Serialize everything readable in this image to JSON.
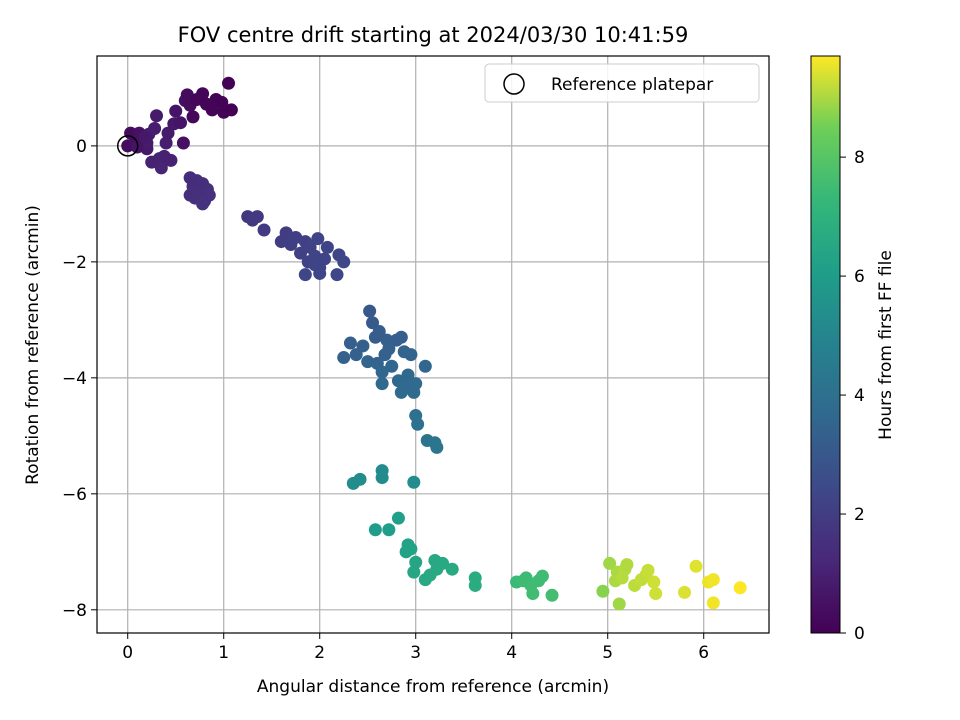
{
  "chart_data": {
    "type": "scatter",
    "title": "FOV centre drift starting at 2024/03/30 10:41:59",
    "xlabel": "Angular distance from reference (arcmin)",
    "ylabel": "Rotation from reference (arcmin)",
    "xlim": [
      -0.32,
      6.68
    ],
    "ylim": [
      -8.4,
      1.55
    ],
    "xticks": [
      0,
      1,
      2,
      3,
      4,
      5,
      6
    ],
    "yticks": [
      0,
      -2,
      -4,
      -6,
      -8
    ],
    "xtick_labels": [
      "0",
      "1",
      "2",
      "3",
      "4",
      "5",
      "6"
    ],
    "ytick_labels": [
      "0",
      "−2",
      "−4",
      "−6",
      "−8"
    ],
    "grid": true,
    "legend": {
      "label": "Reference platepar",
      "placement": "top-right"
    },
    "reference_point": {
      "x": 0,
      "y": 0
    },
    "colorbar": {
      "label": "Hours from first FF file",
      "colormap": "viridis",
      "range": [
        0,
        9.7
      ],
      "ticks": [
        0,
        2,
        4,
        6,
        8
      ],
      "tick_labels": [
        "0",
        "2",
        "4",
        "6",
        "8"
      ]
    },
    "points": [
      {
        "x": 0.0,
        "y": 0.0,
        "h": 0.3
      },
      {
        "x": 0.03,
        "y": 0.22,
        "h": 0.3
      },
      {
        "x": 0.08,
        "y": 0.08,
        "h": 0.4
      },
      {
        "x": 0.12,
        "y": 0.22,
        "h": 0.5
      },
      {
        "x": 0.15,
        "y": 0.05,
        "h": 0.6
      },
      {
        "x": 0.2,
        "y": -0.05,
        "h": 0.7
      },
      {
        "x": 0.22,
        "y": 0.2,
        "h": 0.8
      },
      {
        "x": 0.25,
        "y": -0.28,
        "h": 1.0
      },
      {
        "x": 0.28,
        "y": 0.3,
        "h": 0.9
      },
      {
        "x": 0.3,
        "y": 0.52,
        "h": 0.8
      },
      {
        "x": 0.33,
        "y": -0.22,
        "h": 1.0
      },
      {
        "x": 0.35,
        "y": -0.38,
        "h": 1.1
      },
      {
        "x": 0.38,
        "y": -0.18,
        "h": 1.0
      },
      {
        "x": 0.4,
        "y": 0.05,
        "h": 0.9
      },
      {
        "x": 0.42,
        "y": 0.22,
        "h": 0.8
      },
      {
        "x": 0.45,
        "y": -0.25,
        "h": 1.0
      },
      {
        "x": 0.48,
        "y": 0.38,
        "h": 0.7
      },
      {
        "x": 0.5,
        "y": 0.6,
        "h": 0.6
      },
      {
        "x": 0.55,
        "y": 0.4,
        "h": 0.6
      },
      {
        "x": 0.58,
        "y": 0.05,
        "h": 0.5
      },
      {
        "x": 0.6,
        "y": 0.78,
        "h": 0.4
      },
      {
        "x": 0.62,
        "y": 0.88,
        "h": 0.3
      },
      {
        "x": 0.65,
        "y": 0.7,
        "h": 0.3
      },
      {
        "x": 0.68,
        "y": 0.5,
        "h": 0.2
      },
      {
        "x": 0.72,
        "y": 0.8,
        "h": 0.2
      },
      {
        "x": 0.78,
        "y": 0.9,
        "h": 0.15
      },
      {
        "x": 0.82,
        "y": 0.72,
        "h": 0.1
      },
      {
        "x": 0.88,
        "y": 0.62,
        "h": 0.1
      },
      {
        "x": 0.92,
        "y": 0.8,
        "h": 0.08
      },
      {
        "x": 0.98,
        "y": 0.75,
        "h": 0.05
      },
      {
        "x": 1.0,
        "y": 0.58,
        "h": 0.05
      },
      {
        "x": 1.05,
        "y": 1.08,
        "h": 0.02
      },
      {
        "x": 1.08,
        "y": 0.62,
        "h": 0.03
      },
      {
        "x": 0.2,
        "y": 0.05,
        "h": 0.8
      },
      {
        "x": 0.1,
        "y": -0.02,
        "h": 0.6
      },
      {
        "x": 0.18,
        "y": 0.15,
        "h": 0.7
      },
      {
        "x": 0.65,
        "y": -0.55,
        "h": 1.4
      },
      {
        "x": 0.68,
        "y": -0.7,
        "h": 1.45
      },
      {
        "x": 0.7,
        "y": -0.9,
        "h": 1.5
      },
      {
        "x": 0.72,
        "y": -0.6,
        "h": 1.4
      },
      {
        "x": 0.75,
        "y": -0.8,
        "h": 1.5
      },
      {
        "x": 0.78,
        "y": -0.65,
        "h": 1.45
      },
      {
        "x": 0.8,
        "y": -0.95,
        "h": 1.55
      },
      {
        "x": 0.83,
        "y": -0.75,
        "h": 1.5
      },
      {
        "x": 0.85,
        "y": -0.85,
        "h": 1.55
      },
      {
        "x": 0.65,
        "y": -0.85,
        "h": 1.5
      },
      {
        "x": 0.78,
        "y": -1.0,
        "h": 1.6
      },
      {
        "x": 1.25,
        "y": -1.22,
        "h": 1.8
      },
      {
        "x": 1.3,
        "y": -1.28,
        "h": 1.85
      },
      {
        "x": 1.35,
        "y": -1.22,
        "h": 1.85
      },
      {
        "x": 1.42,
        "y": -1.45,
        "h": 1.9
      },
      {
        "x": 1.6,
        "y": -1.65,
        "h": 2.0
      },
      {
        "x": 1.65,
        "y": -1.5,
        "h": 2.0
      },
      {
        "x": 1.7,
        "y": -1.7,
        "h": 2.05
      },
      {
        "x": 1.75,
        "y": -1.58,
        "h": 2.05
      },
      {
        "x": 1.8,
        "y": -1.85,
        "h": 2.1
      },
      {
        "x": 1.85,
        "y": -1.65,
        "h": 2.1
      },
      {
        "x": 1.88,
        "y": -2.0,
        "h": 2.15
      },
      {
        "x": 1.9,
        "y": -1.75,
        "h": 2.15
      },
      {
        "x": 1.95,
        "y": -1.9,
        "h": 2.2
      },
      {
        "x": 1.98,
        "y": -1.6,
        "h": 2.2
      },
      {
        "x": 2.0,
        "y": -2.1,
        "h": 2.25
      },
      {
        "x": 2.05,
        "y": -1.95,
        "h": 2.25
      },
      {
        "x": 2.08,
        "y": -1.75,
        "h": 2.25
      },
      {
        "x": 1.85,
        "y": -2.22,
        "h": 2.3
      },
      {
        "x": 2.0,
        "y": -2.2,
        "h": 2.3
      },
      {
        "x": 2.18,
        "y": -2.22,
        "h": 2.35
      },
      {
        "x": 2.2,
        "y": -1.88,
        "h": 2.3
      },
      {
        "x": 2.25,
        "y": -2.0,
        "h": 2.35
      },
      {
        "x": 1.95,
        "y": -2.05,
        "h": 2.25
      },
      {
        "x": 2.25,
        "y": -3.65,
        "h": 3.4
      },
      {
        "x": 2.32,
        "y": -3.4,
        "h": 3.3
      },
      {
        "x": 2.38,
        "y": -3.6,
        "h": 3.4
      },
      {
        "x": 2.45,
        "y": -3.45,
        "h": 3.3
      },
      {
        "x": 2.5,
        "y": -3.72,
        "h": 3.5
      },
      {
        "x": 2.52,
        "y": -2.85,
        "h": 3.0
      },
      {
        "x": 2.55,
        "y": -3.05,
        "h": 3.1
      },
      {
        "x": 2.58,
        "y": -3.3,
        "h": 3.2
      },
      {
        "x": 2.6,
        "y": -3.75,
        "h": 3.5
      },
      {
        "x": 2.62,
        "y": -3.2,
        "h": 3.2
      },
      {
        "x": 2.65,
        "y": -3.9,
        "h": 3.6
      },
      {
        "x": 2.65,
        "y": -4.1,
        "h": 3.7
      },
      {
        "x": 2.68,
        "y": -3.6,
        "h": 3.4
      },
      {
        "x": 2.7,
        "y": -3.35,
        "h": 3.3
      },
      {
        "x": 2.72,
        "y": -3.5,
        "h": 3.4
      },
      {
        "x": 2.75,
        "y": -3.8,
        "h": 3.6
      },
      {
        "x": 2.8,
        "y": -3.35,
        "h": 3.3
      },
      {
        "x": 2.82,
        "y": -4.05,
        "h": 3.7
      },
      {
        "x": 2.85,
        "y": -3.3,
        "h": 3.3
      },
      {
        "x": 2.88,
        "y": -3.55,
        "h": 3.5
      },
      {
        "x": 2.9,
        "y": -4.15,
        "h": 3.75
      },
      {
        "x": 2.92,
        "y": -3.95,
        "h": 3.65
      },
      {
        "x": 2.95,
        "y": -3.6,
        "h": 3.5
      },
      {
        "x": 2.98,
        "y": -4.25,
        "h": 3.8
      },
      {
        "x": 3.0,
        "y": -4.1,
        "h": 3.75
      },
      {
        "x": 3.0,
        "y": -4.65,
        "h": 4.0
      },
      {
        "x": 3.02,
        "y": -4.8,
        "h": 4.05
      },
      {
        "x": 3.1,
        "y": -3.8,
        "h": 3.6
      },
      {
        "x": 3.12,
        "y": -5.08,
        "h": 4.2
      },
      {
        "x": 3.2,
        "y": -5.12,
        "h": 4.25
      },
      {
        "x": 3.22,
        "y": -5.2,
        "h": 4.3
      },
      {
        "x": 2.85,
        "y": -4.25,
        "h": 3.8
      },
      {
        "x": 2.35,
        "y": -5.82,
        "h": 5.3
      },
      {
        "x": 2.42,
        "y": -5.75,
        "h": 5.3
      },
      {
        "x": 2.65,
        "y": -5.6,
        "h": 5.2
      },
      {
        "x": 2.65,
        "y": -5.72,
        "h": 5.25
      },
      {
        "x": 2.98,
        "y": -5.8,
        "h": 5.3
      },
      {
        "x": 2.58,
        "y": -6.62,
        "h": 6.0
      },
      {
        "x": 2.72,
        "y": -6.62,
        "h": 6.05
      },
      {
        "x": 2.82,
        "y": -6.42,
        "h": 6.1
      },
      {
        "x": 2.9,
        "y": -7.0,
        "h": 6.3
      },
      {
        "x": 2.92,
        "y": -6.88,
        "h": 6.25
      },
      {
        "x": 2.95,
        "y": -6.95,
        "h": 6.3
      },
      {
        "x": 2.98,
        "y": -7.35,
        "h": 6.45
      },
      {
        "x": 3.0,
        "y": -7.18,
        "h": 6.4
      },
      {
        "x": 3.1,
        "y": -7.48,
        "h": 6.55
      },
      {
        "x": 3.15,
        "y": -7.4,
        "h": 6.55
      },
      {
        "x": 3.2,
        "y": -7.15,
        "h": 6.5
      },
      {
        "x": 3.22,
        "y": -7.3,
        "h": 6.55
      },
      {
        "x": 3.28,
        "y": -7.2,
        "h": 6.55
      },
      {
        "x": 3.38,
        "y": -7.3,
        "h": 6.6
      },
      {
        "x": 3.62,
        "y": -7.45,
        "h": 6.7
      },
      {
        "x": 3.62,
        "y": -7.58,
        "h": 6.75
      },
      {
        "x": 4.05,
        "y": -7.52,
        "h": 7.4
      },
      {
        "x": 4.12,
        "y": -7.5,
        "h": 7.45
      },
      {
        "x": 4.15,
        "y": -7.45,
        "h": 7.45
      },
      {
        "x": 4.2,
        "y": -7.58,
        "h": 7.5
      },
      {
        "x": 4.22,
        "y": -7.72,
        "h": 7.55
      },
      {
        "x": 4.28,
        "y": -7.5,
        "h": 7.5
      },
      {
        "x": 4.32,
        "y": -7.42,
        "h": 7.5
      },
      {
        "x": 4.42,
        "y": -7.75,
        "h": 7.6
      },
      {
        "x": 4.95,
        "y": -7.68,
        "h": 8.7
      },
      {
        "x": 5.02,
        "y": -7.2,
        "h": 8.9
      },
      {
        "x": 5.08,
        "y": -7.5,
        "h": 9.0
      },
      {
        "x": 5.1,
        "y": -7.35,
        "h": 9.0
      },
      {
        "x": 5.12,
        "y": -7.9,
        "h": 8.9
      },
      {
        "x": 5.15,
        "y": -7.45,
        "h": 9.1
      },
      {
        "x": 5.18,
        "y": -7.3,
        "h": 9.1
      },
      {
        "x": 5.2,
        "y": -7.22,
        "h": 9.05
      },
      {
        "x": 5.28,
        "y": -7.58,
        "h": 9.15
      },
      {
        "x": 5.35,
        "y": -7.48,
        "h": 9.2
      },
      {
        "x": 5.4,
        "y": -7.4,
        "h": 9.2
      },
      {
        "x": 5.42,
        "y": -7.32,
        "h": 9.25
      },
      {
        "x": 5.48,
        "y": -7.52,
        "h": 9.3
      },
      {
        "x": 5.5,
        "y": -7.72,
        "h": 9.3
      },
      {
        "x": 5.8,
        "y": -7.7,
        "h": 9.4
      },
      {
        "x": 5.92,
        "y": -7.25,
        "h": 9.45
      },
      {
        "x": 6.05,
        "y": -7.52,
        "h": 9.55
      },
      {
        "x": 6.1,
        "y": -7.48,
        "h": 9.6
      },
      {
        "x": 6.1,
        "y": -7.88,
        "h": 9.6
      },
      {
        "x": 6.38,
        "y": -7.62,
        "h": 9.7
      }
    ]
  }
}
